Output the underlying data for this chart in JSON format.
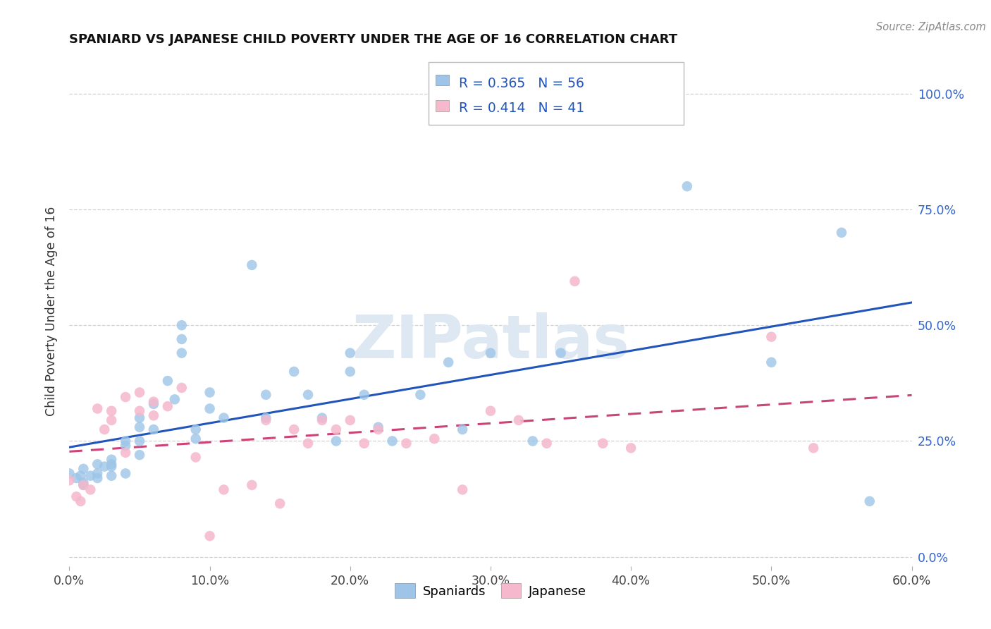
{
  "title": "SPANIARD VS JAPANESE CHILD POVERTY UNDER THE AGE OF 16 CORRELATION CHART",
  "source": "Source: ZipAtlas.com",
  "ylabel": "Child Poverty Under the Age of 16",
  "xlabel_ticks": [
    "0.0%",
    "10.0%",
    "20.0%",
    "30.0%",
    "40.0%",
    "50.0%",
    "60.0%"
  ],
  "xlabel_vals": [
    0.0,
    0.1,
    0.2,
    0.3,
    0.4,
    0.5,
    0.6
  ],
  "ytick_labels_right": [
    "0.0%",
    "25.0%",
    "50.0%",
    "75.0%",
    "100.0%"
  ],
  "ytick_vals": [
    0.0,
    0.25,
    0.5,
    0.75,
    1.0
  ],
  "xlim": [
    0.0,
    0.6
  ],
  "ylim": [
    -0.02,
    1.08
  ],
  "legend_blue_label": "Spaniards",
  "legend_pink_label": "Japanese",
  "r_blue": 0.365,
  "n_blue": 56,
  "r_pink": 0.414,
  "n_pink": 41,
  "blue_scatter_color": "#9ec5e8",
  "pink_scatter_color": "#f5b8cc",
  "trendline_blue_color": "#2255bb",
  "trendline_pink_color": "#cc4477",
  "watermark_text": "ZIPatlas",
  "watermark_color": "#dde8f2",
  "spaniard_x": [
    0.0,
    0.005,
    0.008,
    0.01,
    0.01,
    0.01,
    0.015,
    0.02,
    0.02,
    0.02,
    0.025,
    0.03,
    0.03,
    0.03,
    0.03,
    0.04,
    0.04,
    0.04,
    0.05,
    0.05,
    0.05,
    0.05,
    0.06,
    0.06,
    0.07,
    0.075,
    0.08,
    0.08,
    0.08,
    0.09,
    0.09,
    0.1,
    0.1,
    0.11,
    0.13,
    0.14,
    0.14,
    0.16,
    0.17,
    0.18,
    0.19,
    0.2,
    0.2,
    0.21,
    0.22,
    0.23,
    0.25,
    0.27,
    0.28,
    0.3,
    0.33,
    0.35,
    0.44,
    0.5,
    0.55,
    0.57
  ],
  "spaniard_y": [
    0.18,
    0.17,
    0.175,
    0.19,
    0.16,
    0.155,
    0.175,
    0.2,
    0.18,
    0.17,
    0.195,
    0.21,
    0.2,
    0.195,
    0.175,
    0.25,
    0.24,
    0.18,
    0.3,
    0.28,
    0.25,
    0.22,
    0.33,
    0.275,
    0.38,
    0.34,
    0.5,
    0.47,
    0.44,
    0.275,
    0.255,
    0.355,
    0.32,
    0.3,
    0.63,
    0.35,
    0.3,
    0.4,
    0.35,
    0.3,
    0.25,
    0.44,
    0.4,
    0.35,
    0.28,
    0.25,
    0.35,
    0.42,
    0.275,
    0.44,
    0.25,
    0.44,
    0.8,
    0.42,
    0.7,
    0.12
  ],
  "japanese_x": [
    0.0,
    0.005,
    0.008,
    0.01,
    0.015,
    0.02,
    0.025,
    0.03,
    0.03,
    0.04,
    0.04,
    0.05,
    0.05,
    0.06,
    0.06,
    0.07,
    0.08,
    0.09,
    0.1,
    0.11,
    0.13,
    0.14,
    0.15,
    0.16,
    0.17,
    0.18,
    0.19,
    0.2,
    0.21,
    0.22,
    0.24,
    0.26,
    0.28,
    0.3,
    0.32,
    0.34,
    0.36,
    0.38,
    0.4,
    0.5,
    0.53
  ],
  "japanese_y": [
    0.165,
    0.13,
    0.12,
    0.155,
    0.145,
    0.32,
    0.275,
    0.315,
    0.295,
    0.345,
    0.225,
    0.355,
    0.315,
    0.335,
    0.305,
    0.325,
    0.365,
    0.215,
    0.045,
    0.145,
    0.155,
    0.295,
    0.115,
    0.275,
    0.245,
    0.295,
    0.275,
    0.295,
    0.245,
    0.275,
    0.245,
    0.255,
    0.145,
    0.315,
    0.295,
    0.245,
    0.595,
    0.245,
    0.235,
    0.475,
    0.235
  ]
}
